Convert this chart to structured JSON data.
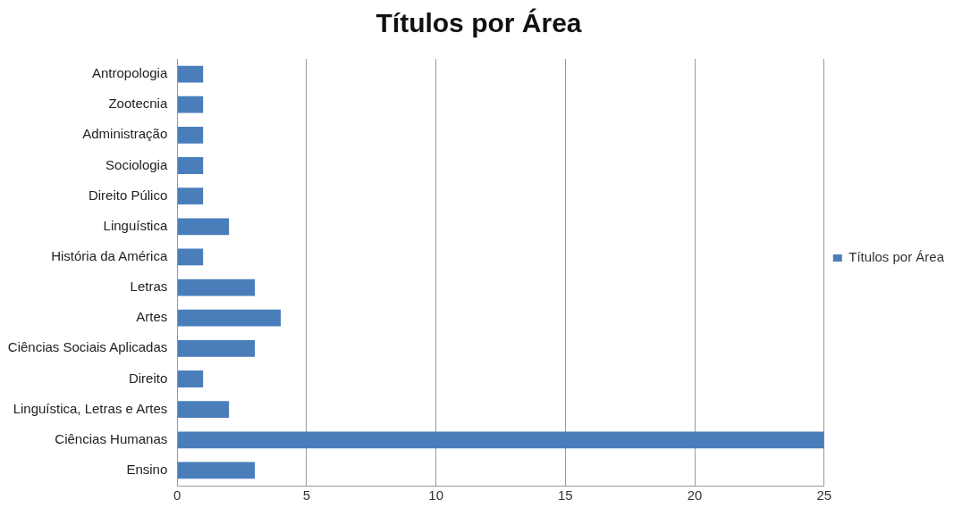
{
  "chart_data": {
    "type": "bar",
    "title": "Títulos por Área",
    "orientation": "horizontal",
    "categories": [
      "Antropologia",
      "Zootecnia",
      "Administração",
      "Sociologia",
      "Direito Púlico",
      "Linguística",
      "História da América",
      "Letras",
      "Artes",
      "Ciências Sociais Aplicadas",
      "Direito",
      "Linguística, Letras e Artes",
      "Ciências Humanas",
      "Ensino"
    ],
    "series": [
      {
        "name": "Títulos por Área",
        "color": "#4a7ebb",
        "values": [
          1,
          1,
          1,
          1,
          1,
          2,
          1,
          3,
          4,
          3,
          1,
          2,
          25,
          3
        ]
      }
    ],
    "xlim": [
      0,
      25
    ],
    "xticks": [
      0,
      5,
      10,
      15,
      20,
      25
    ],
    "grid": "x",
    "legend": "right"
  }
}
